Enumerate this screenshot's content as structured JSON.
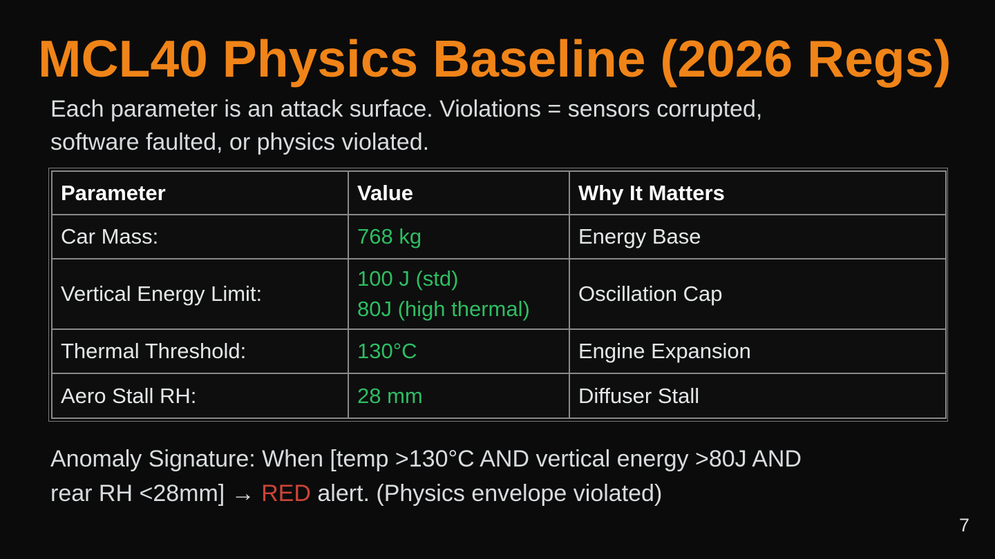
{
  "slide": {
    "title": "MCL40 Physics Baseline (2026 Regs)",
    "subtitle": "Each parameter is an attack surface. Violations = sensors corrupted,\nsoftware faulted, or physics violated.",
    "page_number": "7"
  },
  "table": {
    "columns": [
      "Parameter",
      "Value",
      "Why It Matters"
    ],
    "rows": [
      {
        "parameter": "Car Mass:",
        "value": "768 kg",
        "why": "Energy Base"
      },
      {
        "parameter": "Vertical Energy Limit:",
        "value": "100 J (std)\n80J (high thermal)",
        "why": "Oscillation Cap"
      },
      {
        "parameter": "Thermal Threshold:",
        "value": "130°C",
        "why": "Engine Expansion"
      },
      {
        "parameter": "Aero Stall RH:",
        "value": "28 mm",
        "why": "Diffuser Stall"
      }
    ]
  },
  "anomaly": {
    "before_red": "Anomaly Signature: When [temp >130°C AND vertical energy >80J AND\nrear RH <28mm] → ",
    "red_word": "RED",
    "after_red": " alert. (Physics envelope violated)"
  },
  "colors": {
    "background": "#0B0B0B",
    "title_orange": "#F08418",
    "body_text": "#D8DCDE",
    "header_text": "#FFFFFF",
    "value_green": "#2EBD62",
    "alert_red": "#CD4438",
    "table_border_gray": "#8A8A8A"
  }
}
